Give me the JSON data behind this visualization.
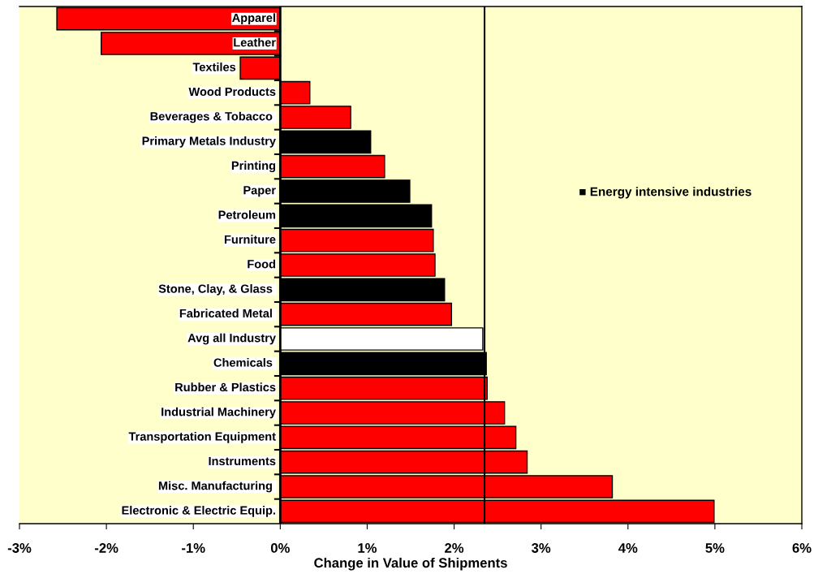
{
  "chart_data": {
    "type": "bar",
    "orientation": "horizontal",
    "xlabel": "Change in Value of Shipments",
    "categories": [
      "Apparel",
      "Leather",
      "Textiles",
      "Wood Products",
      "Beverages & Tobacco ",
      "Primary Metals Industry",
      "Printing",
      "Paper",
      "Petroleum",
      "Furniture",
      "Food",
      "Stone, Clay, & Glass ",
      "Fabricated Metal ",
      "Avg all Industry",
      "Chemicals ",
      "Rubber & Plastics",
      "Industrial Machinery",
      "Transportation Equipment",
      "Instruments",
      "Misc. Manufacturing ",
      "Electronic & Electric Equip."
    ],
    "values": [
      -2.57,
      -2.06,
      -0.46,
      0.34,
      0.81,
      1.04,
      1.2,
      1.49,
      1.74,
      1.76,
      1.78,
      1.89,
      1.97,
      2.33,
      2.37,
      2.38,
      2.58,
      2.71,
      2.84,
      3.82,
      4.99
    ],
    "colors": [
      "#ff0000",
      "#ff0000",
      "#ff0000",
      "#ff0000",
      "#ff0000",
      "#000000",
      "#ff0000",
      "#000000",
      "#000000",
      "#ff0000",
      "#ff0000",
      "#000000",
      "#ff0000",
      "#ffffff",
      "#000000",
      "#ff0000",
      "#ff0000",
      "#ff0000",
      "#ff0000",
      "#ff0000",
      "#ff0000"
    ],
    "xlim": [
      -3,
      6
    ],
    "xticks": [
      {
        "value": -3,
        "label": "-3%"
      },
      {
        "value": -2,
        "label": "-2%"
      },
      {
        "value": -1,
        "label": "-1%"
      },
      {
        "value": 0,
        "label": "0%"
      },
      {
        "value": 1,
        "label": "1%"
      },
      {
        "value": 2,
        "label": "2%"
      },
      {
        "value": 3,
        "label": "3%"
      },
      {
        "value": 4,
        "label": "4%"
      },
      {
        "value": 5,
        "label": "5%"
      },
      {
        "value": 6,
        "label": "6%"
      }
    ],
    "ref_lines": [
      {
        "axis": "x",
        "value": 2.35,
        "color": "#000000"
      }
    ],
    "annotations": [
      "■ Energy intensive industries"
    ],
    "grid": false,
    "legend": false
  }
}
